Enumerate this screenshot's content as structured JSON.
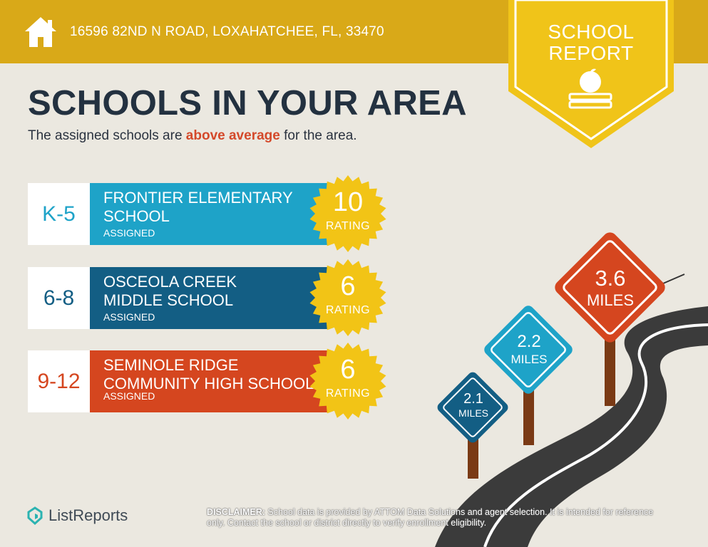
{
  "header": {
    "address": "16596 82ND N ROAD, LOXAHATCHEE, FL, 33470",
    "badge_line1": "SCHOOL",
    "badge_line2": "REPORT"
  },
  "title": "SCHOOLS IN YOUR AREA",
  "subtitle": {
    "before": "The assigned schools are ",
    "highlight": "above average",
    "after": " for the area."
  },
  "schools": [
    {
      "grades": "K-5",
      "name": "FRONTIER ELEMENTARY\nSCHOOL",
      "status": "ASSIGNED",
      "rating": "10",
      "rating_label": "RATING",
      "band_color": "#1ea3c8",
      "grade_color": "#1ea3c8"
    },
    {
      "grades": "6-8",
      "name": "OSCEOLA CREEK\nMIDDLE SCHOOL",
      "status": "ASSIGNED",
      "rating": "6",
      "rating_label": "RATING",
      "band_color": "#135e84",
      "grade_color": "#135e84"
    },
    {
      "grades": "9-12",
      "name": "SEMINOLE RIDGE\nCOMMUNITY HIGH SCHOOL",
      "status": "ASSIGNED",
      "rating": "6",
      "rating_label": "RATING",
      "band_color": "#d5461f",
      "grade_color": "#d5461f"
    }
  ],
  "distance_signs": [
    {
      "value": "2.1",
      "unit": "MILES",
      "color": "#135e84"
    },
    {
      "value": "2.2",
      "unit": "MILES",
      "color": "#1ea3c8"
    },
    {
      "value": "3.6",
      "unit": "MILES",
      "color": "#d5461f"
    }
  ],
  "footer": {
    "logo_text": "ListReports",
    "disclaimer_label": "DISCLAIMER:",
    "disclaimer_text": " School data is provided by ATTOM Data Solutions and agent selection. It is intended for reference only. Contact the school or district directly to verify enrollment eligibility."
  },
  "colors": {
    "header_bg": "#d9a918",
    "badge": "#f0c419",
    "seal": "#f2c416",
    "page_bg": "#ebe8e0",
    "title": "#233140",
    "highlight": "#d4492a"
  },
  "icons": [
    "home-icon",
    "apple-books-icon",
    "listreports-logo-icon"
  ]
}
